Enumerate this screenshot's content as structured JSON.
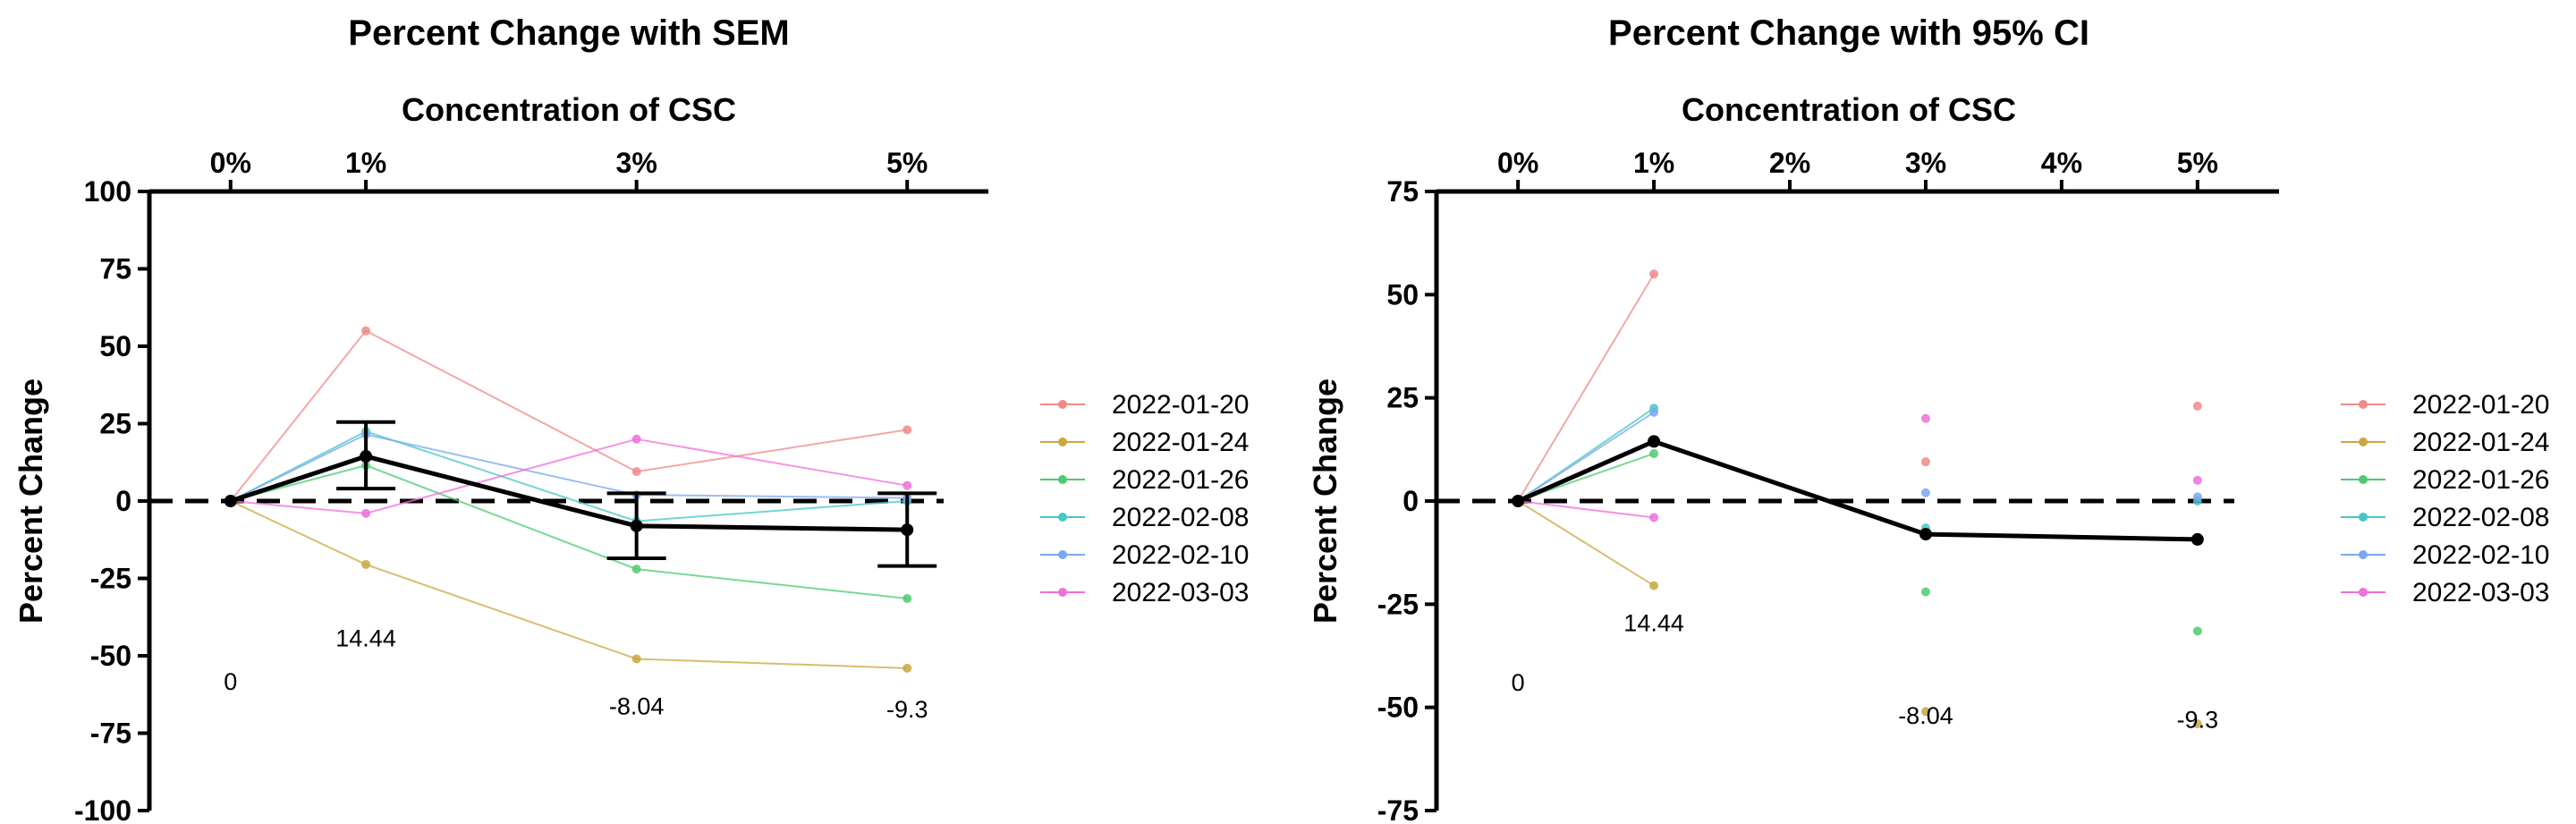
{
  "chart_data": [
    {
      "type": "line",
      "title": "Percent Change with SEM",
      "xlabel": "Concentration of CSC",
      "ylabel": "Percent Change",
      "x_ticks": [
        {
          "value": 0,
          "label": "0%"
        },
        {
          "value": 1,
          "label": "1%"
        },
        {
          "value": 3,
          "label": "3%"
        },
        {
          "value": 5,
          "label": "5%"
        }
      ],
      "xlim": [
        -0.6,
        5.6
      ],
      "ylim": [
        -100,
        100
      ],
      "y_ticks": [
        100,
        75,
        50,
        25,
        0,
        -25,
        -50,
        -75,
        -100
      ],
      "x_axis_position": "top",
      "reference_line": {
        "y": 0,
        "style": "dashed"
      },
      "legend_position": "right",
      "series": [
        {
          "name": "2022-01-20",
          "color": "#f08a8a",
          "x": [
            0,
            1,
            3,
            5
          ],
          "y": [
            0,
            55,
            9.5,
            23
          ]
        },
        {
          "name": "2022-01-24",
          "color": "#c9a840",
          "x": [
            0,
            1,
            3,
            5
          ],
          "y": [
            0,
            -20.5,
            -51,
            -54
          ]
        },
        {
          "name": "2022-01-26",
          "color": "#4ccb6e",
          "x": [
            0,
            1,
            3,
            5
          ],
          "y": [
            0,
            11.5,
            -22,
            -31.5
          ]
        },
        {
          "name": "2022-02-08",
          "color": "#45c7c7",
          "x": [
            0,
            1,
            3,
            5
          ],
          "y": [
            0,
            22.5,
            -6.5,
            0
          ]
        },
        {
          "name": "2022-02-10",
          "color": "#79a8ee",
          "x": [
            0,
            1,
            3,
            5
          ],
          "y": [
            0,
            21.5,
            2,
            1
          ]
        },
        {
          "name": "2022-03-03",
          "color": "#ef6fd9",
          "x": [
            0,
            1,
            3,
            5
          ],
          "y": [
            0,
            -4,
            20,
            5
          ]
        }
      ],
      "mean": {
        "x": [
          0,
          1,
          3,
          5
        ],
        "y": [
          0,
          14.44,
          -8.04,
          -9.3
        ],
        "color": "#000000"
      },
      "error_bars": {
        "x": [
          1,
          3,
          5
        ],
        "lower": [
          4,
          -18.5,
          -21
        ],
        "upper": [
          25.5,
          2.5,
          2.5
        ]
      },
      "data_labels": [
        {
          "x": 0,
          "y": -61,
          "text": "0"
        },
        {
          "x": 1,
          "y": -47,
          "text": "14.44"
        },
        {
          "x": 3,
          "y": -69,
          "text": "-8.04"
        },
        {
          "x": 5,
          "y": -70,
          "text": "-9.3"
        }
      ]
    },
    {
      "type": "line",
      "title": "Percent Change with 95% CI",
      "xlabel": "Concentration of CSC",
      "ylabel": "Percent Change",
      "x_ticks": [
        {
          "value": 0,
          "label": "0%"
        },
        {
          "value": 1,
          "label": "1%"
        },
        {
          "value": 2,
          "label": "2%"
        },
        {
          "value": 3,
          "label": "3%"
        },
        {
          "value": 4,
          "label": "4%"
        },
        {
          "value": 5,
          "label": "5%"
        }
      ],
      "xlim": [
        -0.6,
        5.6
      ],
      "ylim": [
        -75,
        75
      ],
      "y_ticks": [
        75,
        50,
        25,
        0,
        -25,
        -50,
        -75
      ],
      "x_axis_position": "top",
      "reference_line": {
        "y": 0,
        "style": "dashed"
      },
      "legend_position": "right",
      "series": [
        {
          "name": "2022-01-20",
          "color": "#f08a8a",
          "x": [
            0,
            1,
            3,
            5
          ],
          "y": [
            0,
            55,
            9.5,
            23
          ],
          "line_segments": 1
        },
        {
          "name": "2022-01-24",
          "color": "#c9a840",
          "x": [
            0,
            1,
            3,
            5
          ],
          "y": [
            0,
            -20.5,
            -51,
            -54
          ],
          "line_segments": 1
        },
        {
          "name": "2022-01-26",
          "color": "#4ccb6e",
          "x": [
            0,
            1,
            3,
            5
          ],
          "y": [
            0,
            11.5,
            -22,
            -31.5
          ],
          "line_segments": 1
        },
        {
          "name": "2022-02-08",
          "color": "#45c7c7",
          "x": [
            0,
            1,
            3,
            5
          ],
          "y": [
            0,
            22.5,
            -6.5,
            0
          ],
          "line_segments": 1
        },
        {
          "name": "2022-02-10",
          "color": "#79a8ee",
          "x": [
            0,
            1,
            3,
            5
          ],
          "y": [
            0,
            21.5,
            2,
            1
          ],
          "line_segments": 1
        },
        {
          "name": "2022-03-03",
          "color": "#ef6fd9",
          "x": [
            0,
            1,
            3,
            5
          ],
          "y": [
            0,
            -4,
            20,
            5
          ],
          "line_segments": 1
        }
      ],
      "mean": {
        "x": [
          0,
          1,
          3,
          5
        ],
        "y": [
          0,
          14.44,
          -8.04,
          -9.3
        ],
        "color": "#000000"
      },
      "data_labels": [
        {
          "x": 0,
          "y": -46,
          "text": "0"
        },
        {
          "x": 1,
          "y": -31.5,
          "text": "14.44"
        },
        {
          "x": 3,
          "y": -54,
          "text": "-8.04"
        },
        {
          "x": 5,
          "y": -55,
          "text": "-9.3"
        }
      ]
    }
  ]
}
